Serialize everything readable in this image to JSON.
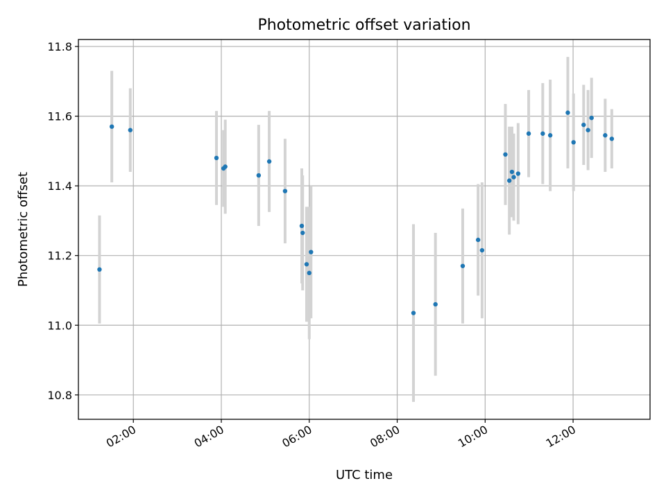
{
  "chart_data": {
    "type": "scatter",
    "title": "Photometric offset variation",
    "xlabel": "UTC time",
    "ylabel": "Photometric offset",
    "grid": true,
    "x_unit": "hours UTC",
    "xlim": [
      0.75,
      13.75
    ],
    "ylim": [
      10.73,
      11.82
    ],
    "xticks": [
      {
        "value": 2,
        "label": "02:00"
      },
      {
        "value": 4,
        "label": "04:00"
      },
      {
        "value": 6,
        "label": "06:00"
      },
      {
        "value": 8,
        "label": "08:00"
      },
      {
        "value": 10,
        "label": "10:00"
      },
      {
        "value": 12,
        "label": "12:00"
      }
    ],
    "yticks": [
      {
        "value": 10.8,
        "label": "10.8"
      },
      {
        "value": 11.0,
        "label": "11.0"
      },
      {
        "value": 11.2,
        "label": "11.2"
      },
      {
        "value": 11.4,
        "label": "11.4"
      },
      {
        "value": 11.6,
        "label": "11.6"
      },
      {
        "value": 11.8,
        "label": "11.8"
      }
    ],
    "colors": {
      "point": "#1f77b4",
      "errorbar": "#d3d3d3"
    },
    "series": [
      {
        "name": "offset",
        "points": [
          {
            "x": 1.23,
            "y": 11.16,
            "err": 0.155
          },
          {
            "x": 1.51,
            "y": 11.57,
            "err": 0.16
          },
          {
            "x": 1.93,
            "y": 11.56,
            "err": 0.12
          },
          {
            "x": 3.89,
            "y": 11.48,
            "err": 0.135
          },
          {
            "x": 4.05,
            "y": 11.45,
            "err": 0.11
          },
          {
            "x": 4.09,
            "y": 11.455,
            "err": 0.135
          },
          {
            "x": 4.85,
            "y": 11.43,
            "err": 0.145
          },
          {
            "x": 5.09,
            "y": 11.47,
            "err": 0.145
          },
          {
            "x": 5.45,
            "y": 11.385,
            "err": 0.15
          },
          {
            "x": 5.83,
            "y": 11.285,
            "err": 0.165
          },
          {
            "x": 5.85,
            "y": 11.265,
            "err": 0.165
          },
          {
            "x": 5.94,
            "y": 11.175,
            "err": 0.165
          },
          {
            "x": 6.0,
            "y": 11.15,
            "err": 0.19
          },
          {
            "x": 6.04,
            "y": 11.21,
            "err": 0.19
          },
          {
            "x": 8.37,
            "y": 11.035,
            "err": 0.255
          },
          {
            "x": 8.87,
            "y": 11.06,
            "err": 0.205
          },
          {
            "x": 9.49,
            "y": 11.17,
            "err": 0.165
          },
          {
            "x": 9.84,
            "y": 11.245,
            "err": 0.16
          },
          {
            "x": 9.93,
            "y": 11.215,
            "err": 0.195
          },
          {
            "x": 10.46,
            "y": 11.49,
            "err": 0.145
          },
          {
            "x": 10.55,
            "y": 11.415,
            "err": 0.155
          },
          {
            "x": 10.61,
            "y": 11.44,
            "err": 0.13
          },
          {
            "x": 10.65,
            "y": 11.425,
            "err": 0.125
          },
          {
            "x": 10.75,
            "y": 11.435,
            "err": 0.145
          },
          {
            "x": 10.99,
            "y": 11.55,
            "err": 0.125
          },
          {
            "x": 11.31,
            "y": 11.55,
            "err": 0.145
          },
          {
            "x": 11.48,
            "y": 11.545,
            "err": 0.16
          },
          {
            "x": 11.88,
            "y": 11.61,
            "err": 0.16
          },
          {
            "x": 12.01,
            "y": 11.525,
            "err": 0.14
          },
          {
            "x": 12.24,
            "y": 11.575,
            "err": 0.115
          },
          {
            "x": 12.34,
            "y": 11.56,
            "err": 0.115
          },
          {
            "x": 12.42,
            "y": 11.595,
            "err": 0.115
          },
          {
            "x": 12.73,
            "y": 11.545,
            "err": 0.105
          },
          {
            "x": 12.88,
            "y": 11.535,
            "err": 0.085
          }
        ]
      }
    ]
  }
}
